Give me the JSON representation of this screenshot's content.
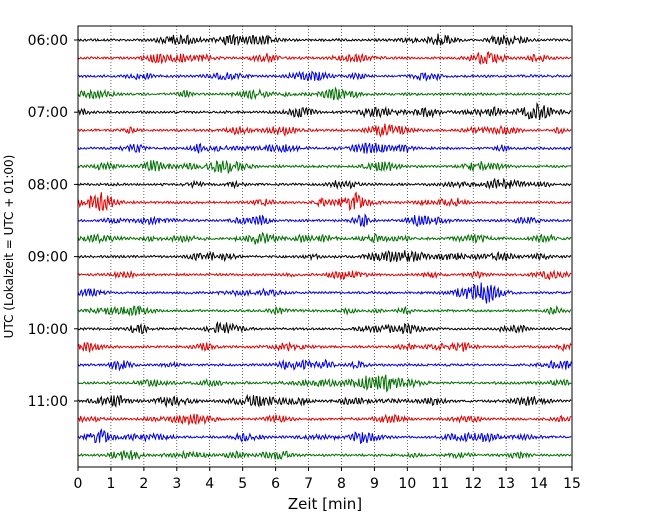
{
  "chart_data": {
    "type": "line",
    "title": "",
    "xlabel": "Zeit  [min]",
    "ylabel": "UTC (Lokalzeit = UTC + 01:00)",
    "xlim": [
      0,
      15
    ],
    "x_ticks": [
      "0",
      "1",
      "2",
      "3",
      "4",
      "5",
      "6",
      "7",
      "8",
      "9",
      "10",
      "11",
      "12",
      "13",
      "14",
      "15"
    ],
    "y_ticks": [
      "06:00",
      "07:00",
      "08:00",
      "09:00",
      "10:00",
      "11:00"
    ],
    "grid": "vertical dotted",
    "trace_colors": [
      "#000000",
      "#e00000",
      "#0000e0",
      "#007000"
    ],
    "traces": [
      {
        "start": "06:00"
      },
      {
        "start": "06:15"
      },
      {
        "start": "06:30"
      },
      {
        "start": "06:45"
      },
      {
        "start": "07:00"
      },
      {
        "start": "07:15"
      },
      {
        "start": "07:30"
      },
      {
        "start": "07:45"
      },
      {
        "start": "08:00"
      },
      {
        "start": "08:15"
      },
      {
        "start": "08:30"
      },
      {
        "start": "08:45"
      },
      {
        "start": "09:00"
      },
      {
        "start": "09:15"
      },
      {
        "start": "09:30"
      },
      {
        "start": "09:45"
      },
      {
        "start": "10:00"
      },
      {
        "start": "10:15"
      },
      {
        "start": "10:30"
      },
      {
        "start": "10:45"
      },
      {
        "start": "11:00"
      },
      {
        "start": "11:15"
      },
      {
        "start": "11:30"
      },
      {
        "start": "11:45"
      }
    ]
  }
}
